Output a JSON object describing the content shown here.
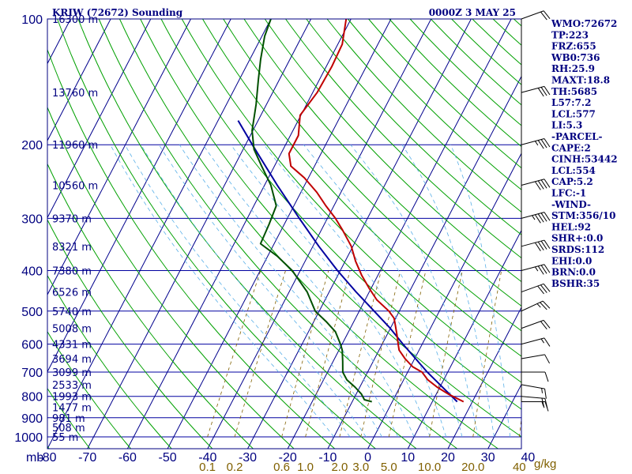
{
  "header": {
    "station": "KRIW (72672) Sounding",
    "time": "0000Z  3 MAY 25"
  },
  "indices": [
    "WMO:72672",
    "TP:223",
    "FRZ:655",
    "WB0:736",
    "RH:25.9",
    "MAXT:18.8",
    "TH:5685",
    "L57:7.2",
    "LCL:577",
    "LI:5.3",
    "-PARCEL-",
    "CAPE:2",
    "CINH:53442",
    "LCL:554",
    "CAP:5.2",
    "LFC:-1",
    "-WIND-",
    "STM:356/10",
    "HEL:92",
    "SHR+:0.0",
    "SRDS:112",
    "EHI:0.0",
    "BRN:0.0",
    "BSHR:35"
  ],
  "chart_data": {
    "type": "skew-t",
    "title": "KRIW (72672) Sounding",
    "subtitle": "0000Z  3 MAY 25",
    "pressure_axis_unit": "mb",
    "mixing_ratio_unit": "g/kg",
    "pressure_levels": [
      100,
      200,
      300,
      400,
      500,
      600,
      700,
      800,
      900,
      1000
    ],
    "pressure_labels": [
      "100",
      "200",
      "300",
      "400",
      "500",
      "600",
      "700",
      "800",
      "900",
      "1000"
    ],
    "temperature_ticks": [
      -80,
      -70,
      -60,
      -50,
      -40,
      -30,
      -20,
      -10,
      0,
      10,
      20,
      30,
      40
    ],
    "temperature_labels": [
      "-80",
      "-70",
      "-60",
      "-50",
      "-40",
      "-30",
      "-20",
      "-10",
      "0",
      "10",
      "20",
      "30",
      "40"
    ],
    "height_labels": [
      {
        "p": 100,
        "label": "16300 m"
      },
      {
        "p": 150,
        "label": "13760 m"
      },
      {
        "p": 200,
        "label": "11960 m"
      },
      {
        "p": 250,
        "label": "10560 m"
      },
      {
        "p": 300,
        "label": "9370 m"
      },
      {
        "p": 350,
        "label": "8321 m"
      },
      {
        "p": 400,
        "label": "7380 m"
      },
      {
        "p": 450,
        "label": "6526 m"
      },
      {
        "p": 500,
        "label": "5740 m"
      },
      {
        "p": 550,
        "label": "5008 m"
      },
      {
        "p": 600,
        "label": "4331 m"
      },
      {
        "p": 650,
        "label": "3694 m"
      },
      {
        "p": 700,
        "label": "3099 m"
      },
      {
        "p": 750,
        "label": "2533 m"
      },
      {
        "p": 800,
        "label": "1993 m"
      },
      {
        "p": 850,
        "label": "1477 m"
      },
      {
        "p": 900,
        "label": "981 m"
      },
      {
        "p": 950,
        "label": "508 m"
      },
      {
        "p": 1000,
        "label": "55 m"
      }
    ],
    "mixing_ratio_labels": [
      "0.1",
      "0.2",
      "0.6",
      "1.0",
      "2.0",
      "3.0",
      "5.0",
      "10.0",
      "20.0",
      "40"
    ],
    "mixing_ratio_values": [
      0.1,
      0.2,
      0.6,
      1.0,
      2.0,
      3.0,
      5.0,
      10.0,
      20.0,
      40.0
    ],
    "temperature_profile": [
      {
        "p": 824,
        "t": 17.8
      },
      {
        "p": 790,
        "t": 13.0
      },
      {
        "p": 760,
        "t": 9.3
      },
      {
        "p": 730,
        "t": 6.0
      },
      {
        "p": 700,
        "t": 3.6
      },
      {
        "p": 680,
        "t": 0.6
      },
      {
        "p": 650,
        "t": -2.4
      },
      {
        "p": 620,
        "t": -5.0
      },
      {
        "p": 600,
        "t": -6.0
      },
      {
        "p": 570,
        "t": -7.5
      },
      {
        "p": 540,
        "t": -9.2
      },
      {
        "p": 520,
        "t": -10.4
      },
      {
        "p": 500,
        "t": -12.6
      },
      {
        "p": 470,
        "t": -17.1
      },
      {
        "p": 440,
        "t": -20.6
      },
      {
        "p": 410,
        "t": -24.1
      },
      {
        "p": 380,
        "t": -27.4
      },
      {
        "p": 350,
        "t": -30.4
      },
      {
        "p": 320,
        "t": -34.7
      },
      {
        "p": 300,
        "t": -38.0
      },
      {
        "p": 280,
        "t": -42.0
      },
      {
        "p": 260,
        "t": -46.0
      },
      {
        "p": 240,
        "t": -51.0
      },
      {
        "p": 225,
        "t": -55.9
      },
      {
        "p": 210,
        "t": -58.0
      },
      {
        "p": 190,
        "t": -58.0
      },
      {
        "p": 170,
        "t": -60.2
      },
      {
        "p": 150,
        "t": -58.9
      },
      {
        "p": 130,
        "t": -58.6
      },
      {
        "p": 115,
        "t": -58.9
      },
      {
        "p": 100,
        "t": -61.2
      }
    ],
    "dewpoint_profile": [
      {
        "p": 824,
        "td": -5.1
      },
      {
        "p": 815,
        "td": -7.2
      },
      {
        "p": 790,
        "td": -8.7
      },
      {
        "p": 760,
        "td": -11.2
      },
      {
        "p": 730,
        "td": -14.2
      },
      {
        "p": 700,
        "td": -16.2
      },
      {
        "p": 660,
        "td": -17.6
      },
      {
        "p": 620,
        "td": -19.2
      },
      {
        "p": 600,
        "td": -20.4
      },
      {
        "p": 560,
        "td": -23.3
      },
      {
        "p": 530,
        "td": -26.9
      },
      {
        "p": 500,
        "td": -31.0
      },
      {
        "p": 450,
        "td": -35.5
      },
      {
        "p": 400,
        "td": -42.0
      },
      {
        "p": 370,
        "td": -47.5
      },
      {
        "p": 345,
        "td": -53.4
      },
      {
        "p": 310,
        "td": -53.8
      },
      {
        "p": 280,
        "td": -54.4
      },
      {
        "p": 250,
        "td": -58.4
      },
      {
        "p": 225,
        "td": -63.2
      },
      {
        "p": 205,
        "td": -67.3
      },
      {
        "p": 185,
        "td": -70.2
      },
      {
        "p": 160,
        "td": -72.6
      },
      {
        "p": 140,
        "td": -75.2
      },
      {
        "p": 125,
        "td": -77.3
      },
      {
        "p": 110,
        "td": -79.3
      },
      {
        "p": 100,
        "td": -80.0
      }
    ],
    "parcel_profile": [
      {
        "p": 824,
        "t": 16.2
      },
      {
        "p": 700,
        "t": 4.9
      },
      {
        "p": 600,
        "t": -4.8
      },
      {
        "p": 550,
        "t": -10.0
      },
      {
        "p": 500,
        "t": -16.3
      },
      {
        "p": 450,
        "t": -23.3
      },
      {
        "p": 400,
        "t": -30.7
      },
      {
        "p": 350,
        "t": -38.5
      },
      {
        "p": 300,
        "t": -47.0
      },
      {
        "p": 250,
        "t": -56.8
      },
      {
        "p": 200,
        "t": -68.3
      },
      {
        "p": 175,
        "t": -75.0
      }
    ],
    "wind_profile": [
      {
        "p": 824,
        "dir": 270,
        "spd": 15
      },
      {
        "p": 800,
        "dir": 275,
        "spd": 20
      },
      {
        "p": 750,
        "dir": 280,
        "spd": 15
      },
      {
        "p": 700,
        "dir": 270,
        "spd": 10
      },
      {
        "p": 650,
        "dir": 260,
        "spd": 10
      },
      {
        "p": 600,
        "dir": 255,
        "spd": 15
      },
      {
        "p": 550,
        "dir": 250,
        "spd": 20
      },
      {
        "p": 500,
        "dir": 245,
        "spd": 25
      },
      {
        "p": 450,
        "dir": 250,
        "spd": 30
      },
      {
        "p": 400,
        "dir": 255,
        "spd": 35
      },
      {
        "p": 350,
        "dir": 255,
        "spd": 40
      },
      {
        "p": 300,
        "dir": 255,
        "spd": 45
      },
      {
        "p": 250,
        "dir": 255,
        "spd": 40
      },
      {
        "p": 200,
        "dir": 255,
        "spd": 35
      },
      {
        "p": 150,
        "dir": 255,
        "spd": 30
      },
      {
        "p": 100,
        "dir": 250,
        "spd": 20
      }
    ],
    "colors": {
      "frame": "#000080",
      "isobar": "#0000a0",
      "isotherm": "#00008c",
      "dry_adiabat": "#00a000",
      "moist_adiabat": "#5ab0e8",
      "mixing_ratio": "#806000",
      "temperature": "#c00000",
      "dewpoint": "#005000",
      "parcel": "#0000a0",
      "wind_barb": "#000000"
    }
  }
}
